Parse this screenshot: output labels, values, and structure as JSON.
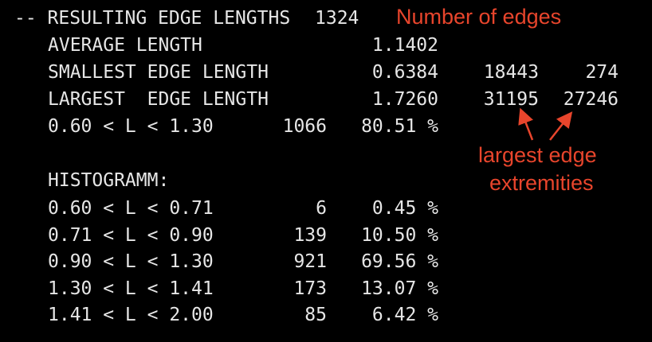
{
  "header": {
    "prefix": "-- RESULTING EDGE LENGTHS",
    "count": "1324"
  },
  "rows": {
    "average": {
      "label": "AVERAGE LENGTH",
      "value": "1.1402"
    },
    "smallest": {
      "label": "SMALLEST EDGE LENGTH",
      "value": "0.6384",
      "node_a": "18443",
      "node_b": "274"
    },
    "largest": {
      "label": "LARGEST  EDGE LENGTH",
      "value": "1.7260",
      "node_a": "31195",
      "node_b": "27246"
    },
    "range": {
      "label": "0.60 < L < 1.30",
      "count": "1066",
      "pct": "80.51 %"
    }
  },
  "histogram": {
    "title": "HISTOGRAMM:",
    "bins": [
      {
        "label": "0.60 < L < 0.71",
        "count": "6",
        "pct": "0.45 %"
      },
      {
        "label": "0.71 < L < 0.90",
        "count": "139",
        "pct": "10.50 %"
      },
      {
        "label": "0.90 < L < 1.30",
        "count": "921",
        "pct": "69.56 %"
      },
      {
        "label": "1.30 < L < 1.41",
        "count": "173",
        "pct": "13.07 %"
      },
      {
        "label": "1.41 < L < 2.00",
        "count": "85",
        "pct": "6.42 %"
      }
    ]
  },
  "annotations": {
    "edges": "Number of edges",
    "extremities_line1": "largest edge",
    "extremities_line2": "extremities"
  },
  "colors": {
    "background": "#000000",
    "terminal_text": "#e6e6e6",
    "annotation": "#e8452c"
  }
}
